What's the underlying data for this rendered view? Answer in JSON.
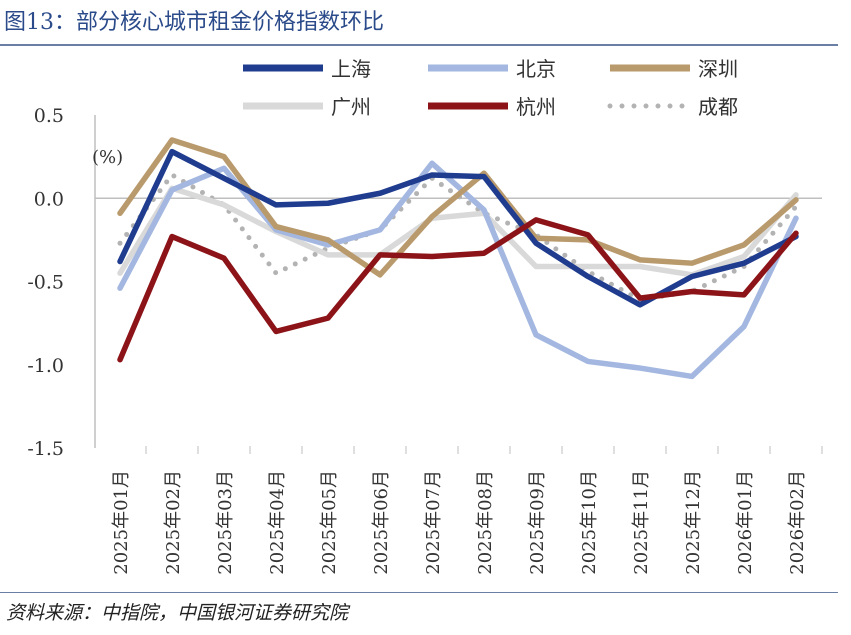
{
  "header": {
    "title": "图13：部分核心城市租金价格指数环比"
  },
  "footer": {
    "source": "资料来源：中指院，中国银河证券研究院"
  },
  "chart_data": {
    "type": "line",
    "unit_label": "(%)",
    "categories": [
      "2025年01月",
      "2025年02月",
      "2025年03月",
      "2025年04月",
      "2025年05月",
      "2025年06月",
      "2025年07月",
      "2025年08月",
      "2025年09月",
      "2025年10月",
      "2025年11月",
      "2025年12月",
      "2026年01月",
      "2026年02月"
    ],
    "ylim": [
      -1.5,
      0.5
    ],
    "yticks": [
      0.5,
      0.0,
      -0.5,
      -1.0,
      -1.5
    ],
    "ytick_labels": [
      "0.5",
      "0.0",
      "-0.5",
      "-1.0",
      "-1.5"
    ],
    "legend_position": "top",
    "grid": false,
    "series": [
      {
        "name": "上海",
        "color": "#1f3c8f",
        "style": "solid",
        "values": [
          -0.38,
          0.28,
          0.12,
          -0.04,
          -0.03,
          0.03,
          0.14,
          0.13,
          -0.27,
          -0.47,
          -0.64,
          -0.47,
          -0.39,
          -0.23
        ]
      },
      {
        "name": "北京",
        "color": "#a3b7e0",
        "style": "solid",
        "values": [
          -0.54,
          0.05,
          0.18,
          -0.19,
          -0.28,
          -0.19,
          0.21,
          -0.07,
          -0.82,
          -0.98,
          -1.02,
          -1.07,
          -0.77,
          -0.12
        ]
      },
      {
        "name": "深圳",
        "color": "#b99a6c",
        "style": "solid",
        "values": [
          -0.09,
          0.35,
          0.25,
          -0.17,
          -0.25,
          -0.46,
          -0.11,
          0.15,
          -0.24,
          -0.25,
          -0.37,
          -0.39,
          -0.28,
          -0.01
        ]
      },
      {
        "name": "广州",
        "color": "#d9d9d9",
        "style": "solid",
        "values": [
          -0.45,
          0.06,
          -0.04,
          -0.2,
          -0.34,
          -0.34,
          -0.12,
          -0.09,
          -0.41,
          -0.41,
          -0.41,
          -0.46,
          -0.35,
          0.02
        ]
      },
      {
        "name": "杭州",
        "color": "#8c1418",
        "style": "solid",
        "values": [
          -0.97,
          -0.23,
          -0.36,
          -0.8,
          -0.72,
          -0.34,
          -0.35,
          -0.33,
          -0.13,
          -0.22,
          -0.6,
          -0.56,
          -0.58,
          -0.21
        ]
      },
      {
        "name": "成都",
        "color": "#b3b3b3",
        "style": "dotted",
        "values": [
          -0.27,
          0.14,
          -0.04,
          -0.45,
          -0.3,
          -0.19,
          0.12,
          -0.09,
          -0.22,
          -0.44,
          -0.61,
          -0.56,
          -0.41,
          -0.05
        ]
      }
    ]
  }
}
